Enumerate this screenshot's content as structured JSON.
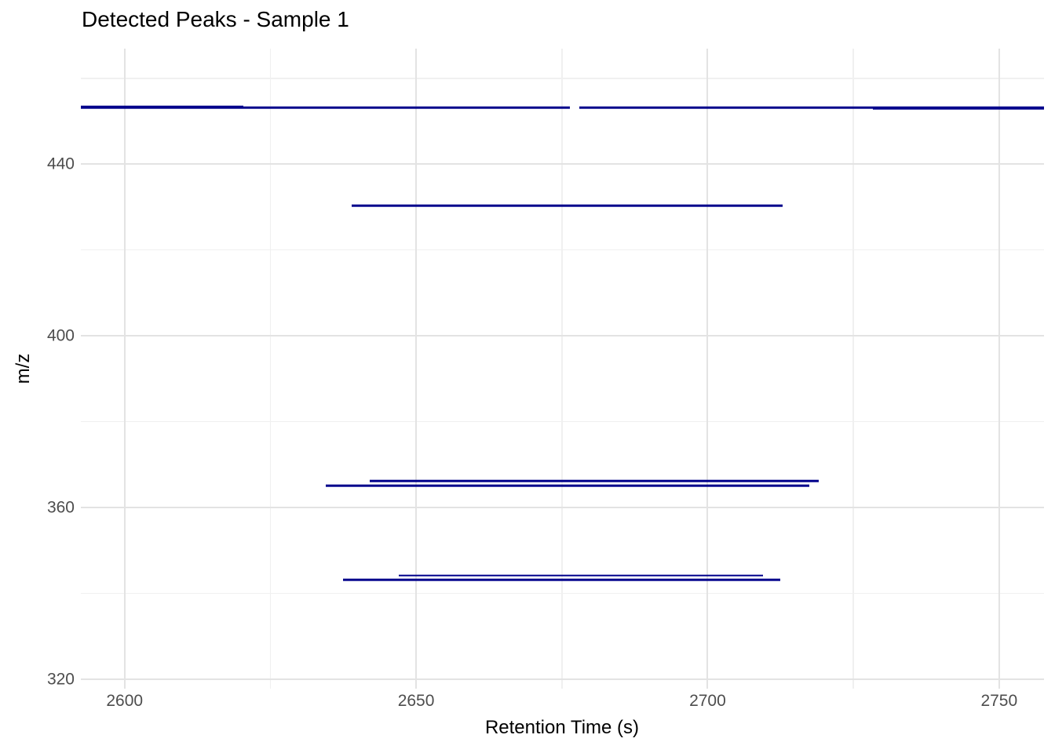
{
  "chart_data": {
    "type": "segment",
    "title": "Detected Peaks - Sample 1",
    "xlabel": "Retention Time (s)",
    "ylabel": "m/z",
    "x_domain": [
      2592.5,
      2757.7
    ],
    "y_domain": [
      317.8,
      466.9
    ],
    "x_ticks": {
      "major": [
        2600,
        2650,
        2700,
        2750
      ],
      "minor": [
        2625,
        2675,
        2725
      ]
    },
    "y_ticks": {
      "major": [
        320,
        360,
        400,
        440
      ],
      "minor": [
        340,
        380,
        420,
        460
      ]
    },
    "grid": {
      "show": true,
      "background": "#ffffff"
    },
    "legend": "none",
    "colors": {
      "segment": "#00008B",
      "grid_major": "#E3E3E3",
      "grid_minor": "#F0F0F0",
      "tick_text": "#4D4D4D",
      "title_text": "#000000"
    },
    "segments": [
      {
        "mz": 453.4,
        "rt_start": 2592.5,
        "rt_end": 2620.4
      },
      {
        "mz": 453.2,
        "rt_start": 2592.5,
        "rt_end": 2676.4
      },
      {
        "mz": 453.2,
        "rt_start": 2678.0,
        "rt_end": 2757.7
      },
      {
        "mz": 452.9,
        "rt_start": 2728.3,
        "rt_end": 2757.7
      },
      {
        "mz": 430.3,
        "rt_start": 2639.0,
        "rt_end": 2712.9
      },
      {
        "mz": 366.2,
        "rt_start": 2642.0,
        "rt_end": 2719.0
      },
      {
        "mz": 365.1,
        "rt_start": 2634.5,
        "rt_end": 2717.5
      },
      {
        "mz": 344.2,
        "rt_start": 2647.0,
        "rt_end": 2709.5
      },
      {
        "mz": 343.2,
        "rt_start": 2637.5,
        "rt_end": 2712.5
      }
    ]
  }
}
